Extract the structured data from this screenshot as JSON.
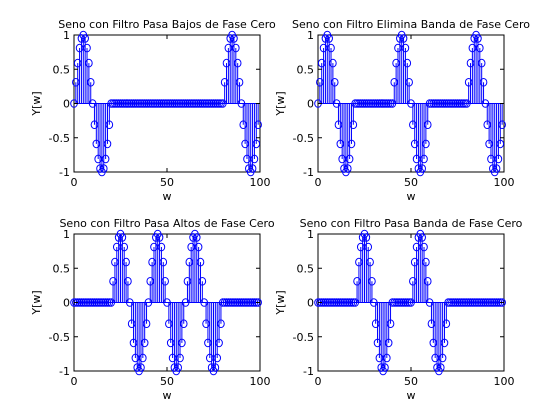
{
  "chart_data": [
    {
      "type": "stem",
      "title": "Seno con Filtro Pasa Bajos de Fase Cero",
      "xlabel": "w",
      "ylabel": "Y[w]",
      "xlim": [
        0,
        100
      ],
      "ylim": [
        -1,
        1
      ],
      "xticks": [
        0,
        50,
        100
      ],
      "yticks": [
        -1,
        -0.5,
        0,
        0.5,
        1
      ],
      "grid": false,
      "color": "#0000ff",
      "x": [
        0,
        1,
        2,
        3,
        4,
        5,
        6,
        7,
        8,
        9,
        10,
        11,
        12,
        13,
        14,
        15,
        16,
        17,
        18,
        19,
        20,
        21,
        22,
        23,
        24,
        25,
        26,
        27,
        28,
        29,
        30,
        31,
        32,
        33,
        34,
        35,
        36,
        37,
        38,
        39,
        40,
        41,
        42,
        43,
        44,
        45,
        46,
        47,
        48,
        49,
        50,
        51,
        52,
        53,
        54,
        55,
        56,
        57,
        58,
        59,
        60,
        61,
        62,
        63,
        64,
        65,
        66,
        67,
        68,
        69,
        70,
        71,
        72,
        73,
        74,
        75,
        76,
        77,
        78,
        79,
        80,
        81,
        82,
        83,
        84,
        85,
        86,
        87,
        88,
        89,
        90,
        91,
        92,
        93,
        94,
        95,
        96,
        97,
        98,
        99
      ],
      "y": [
        0,
        0.31,
        0.59,
        0.81,
        0.95,
        1,
        0.95,
        0.81,
        0.59,
        0.31,
        0,
        -0.31,
        -0.59,
        -0.81,
        -0.95,
        -1,
        -0.95,
        -0.81,
        -0.59,
        -0.31,
        0,
        0,
        0,
        0,
        0,
        0,
        0,
        0,
        0,
        0,
        0,
        0,
        0,
        0,
        0,
        0,
        0,
        0,
        0,
        0,
        0,
        0,
        0,
        0,
        0,
        0,
        0,
        0,
        0,
        0,
        0,
        0,
        0,
        0,
        0,
        0,
        0,
        0,
        0,
        0,
        0,
        0,
        0,
        0,
        0,
        0,
        0,
        0,
        0,
        0,
        0,
        0,
        0,
        0,
        0,
        0,
        0,
        0,
        0,
        0,
        0,
        0.31,
        0.59,
        0.81,
        0.95,
        1,
        0.95,
        0.81,
        0.59,
        0.31,
        0,
        -0.31,
        -0.59,
        -0.81,
        -0.95,
        -1,
        -0.95,
        -0.81,
        -0.59,
        -0.31
      ]
    },
    {
      "type": "stem",
      "title": "Seno con Filtro Elimina Banda de Fase Cero",
      "xlabel": "w",
      "ylabel": "Y[w]",
      "xlim": [
        0,
        100
      ],
      "ylim": [
        -1,
        1
      ],
      "xticks": [
        0,
        50,
        100
      ],
      "yticks": [
        -1,
        -0.5,
        0,
        0.5,
        1
      ],
      "grid": false,
      "color": "#0000ff",
      "x": [
        0,
        1,
        2,
        3,
        4,
        5,
        6,
        7,
        8,
        9,
        10,
        11,
        12,
        13,
        14,
        15,
        16,
        17,
        18,
        19,
        20,
        21,
        22,
        23,
        24,
        25,
        26,
        27,
        28,
        29,
        30,
        31,
        32,
        33,
        34,
        35,
        36,
        37,
        38,
        39,
        40,
        41,
        42,
        43,
        44,
        45,
        46,
        47,
        48,
        49,
        50,
        51,
        52,
        53,
        54,
        55,
        56,
        57,
        58,
        59,
        60,
        61,
        62,
        63,
        64,
        65,
        66,
        67,
        68,
        69,
        70,
        71,
        72,
        73,
        74,
        75,
        76,
        77,
        78,
        79,
        80,
        81,
        82,
        83,
        84,
        85,
        86,
        87,
        88,
        89,
        90,
        91,
        92,
        93,
        94,
        95,
        96,
        97,
        98,
        99
      ],
      "y": [
        0,
        0.31,
        0.59,
        0.81,
        0.95,
        1,
        0.95,
        0.81,
        0.59,
        0.31,
        0,
        -0.31,
        -0.59,
        -0.81,
        -0.95,
        -1,
        -0.95,
        -0.81,
        -0.59,
        -0.31,
        0,
        0,
        0,
        0,
        0,
        0,
        0,
        0,
        0,
        0,
        0,
        0,
        0,
        0,
        0,
        0,
        0,
        0,
        0,
        0,
        0,
        0.31,
        0.59,
        0.81,
        0.95,
        1,
        0.95,
        0.81,
        0.59,
        0.31,
        0,
        -0.31,
        -0.59,
        -0.81,
        -0.95,
        -1,
        -0.95,
        -0.81,
        -0.59,
        -0.31,
        0,
        0,
        0,
        0,
        0,
        0,
        0,
        0,
        0,
        0,
        0,
        0,
        0,
        0,
        0,
        0,
        0,
        0,
        0,
        0,
        0,
        0.31,
        0.59,
        0.81,
        0.95,
        1,
        0.95,
        0.81,
        0.59,
        0.31,
        0,
        -0.31,
        -0.59,
        -0.81,
        -0.95,
        -1,
        -0.95,
        -0.81,
        -0.59,
        -0.31
      ]
    },
    {
      "type": "stem",
      "title": "Seno con Filtro Pasa Altos de Fase Cero",
      "xlabel": "w",
      "ylabel": "Y[w]",
      "xlim": [
        0,
        100
      ],
      "ylim": [
        -1,
        1
      ],
      "xticks": [
        0,
        50,
        100
      ],
      "yticks": [
        -1,
        -0.5,
        0,
        0.5,
        1
      ],
      "grid": false,
      "color": "#0000ff",
      "x": [
        0,
        1,
        2,
        3,
        4,
        5,
        6,
        7,
        8,
        9,
        10,
        11,
        12,
        13,
        14,
        15,
        16,
        17,
        18,
        19,
        20,
        21,
        22,
        23,
        24,
        25,
        26,
        27,
        28,
        29,
        30,
        31,
        32,
        33,
        34,
        35,
        36,
        37,
        38,
        39,
        40,
        41,
        42,
        43,
        44,
        45,
        46,
        47,
        48,
        49,
        50,
        51,
        52,
        53,
        54,
        55,
        56,
        57,
        58,
        59,
        60,
        61,
        62,
        63,
        64,
        65,
        66,
        67,
        68,
        69,
        70,
        71,
        72,
        73,
        74,
        75,
        76,
        77,
        78,
        79,
        80,
        81,
        82,
        83,
        84,
        85,
        86,
        87,
        88,
        89,
        90,
        91,
        92,
        93,
        94,
        95,
        96,
        97,
        98,
        99
      ],
      "y": [
        0,
        0,
        0,
        0,
        0,
        0,
        0,
        0,
        0,
        0,
        0,
        0,
        0,
        0,
        0,
        0,
        0,
        0,
        0,
        0,
        0,
        0.31,
        0.59,
        0.81,
        0.95,
        1,
        0.95,
        0.81,
        0.59,
        0.31,
        0,
        -0.31,
        -0.59,
        -0.81,
        -0.95,
        -1,
        -0.95,
        -0.81,
        -0.59,
        -0.31,
        0,
        0.31,
        0.59,
        0.81,
        0.95,
        1,
        0.95,
        0.81,
        0.59,
        0.31,
        0,
        -0.31,
        -0.59,
        -0.81,
        -0.95,
        -1,
        -0.95,
        -0.81,
        -0.59,
        -0.31,
        0,
        0.31,
        0.59,
        0.81,
        0.95,
        1,
        0.95,
        0.81,
        0.59,
        0.31,
        0,
        -0.31,
        -0.59,
        -0.81,
        -0.95,
        -1,
        -0.95,
        -0.81,
        -0.59,
        -0.31,
        0,
        0,
        0,
        0,
        0,
        0,
        0,
        0,
        0,
        0,
        0,
        0,
        0,
        0,
        0,
        0,
        0,
        0,
        0,
        0
      ]
    },
    {
      "type": "stem",
      "title": "Seno con Filtro Pasa Banda de Fase Cero",
      "xlabel": "w",
      "ylabel": "Y[w]",
      "xlim": [
        0,
        100
      ],
      "ylim": [
        -1,
        1
      ],
      "xticks": [
        0,
        50,
        100
      ],
      "yticks": [
        -1,
        -0.5,
        0,
        0.5,
        1
      ],
      "grid": false,
      "color": "#0000ff",
      "x": [
        0,
        1,
        2,
        3,
        4,
        5,
        6,
        7,
        8,
        9,
        10,
        11,
        12,
        13,
        14,
        15,
        16,
        17,
        18,
        19,
        20,
        21,
        22,
        23,
        24,
        25,
        26,
        27,
        28,
        29,
        30,
        31,
        32,
        33,
        34,
        35,
        36,
        37,
        38,
        39,
        40,
        41,
        42,
        43,
        44,
        45,
        46,
        47,
        48,
        49,
        50,
        51,
        52,
        53,
        54,
        55,
        56,
        57,
        58,
        59,
        60,
        61,
        62,
        63,
        64,
        65,
        66,
        67,
        68,
        69,
        70,
        71,
        72,
        73,
        74,
        75,
        76,
        77,
        78,
        79,
        80,
        81,
        82,
        83,
        84,
        85,
        86,
        87,
        88,
        89,
        90,
        91,
        92,
        93,
        94,
        95,
        96,
        97,
        98,
        99
      ],
      "y": [
        0,
        0,
        0,
        0,
        0,
        0,
        0,
        0,
        0,
        0,
        0,
        0,
        0,
        0,
        0,
        0,
        0,
        0,
        0,
        0,
        0,
        0.31,
        0.59,
        0.81,
        0.95,
        1,
        0.95,
        0.81,
        0.59,
        0.31,
        0,
        -0.31,
        -0.59,
        -0.81,
        -0.95,
        -1,
        -0.95,
        -0.81,
        -0.59,
        -0.31,
        0,
        0,
        0,
        0,
        0,
        0,
        0,
        0,
        0,
        0,
        0,
        0.31,
        0.59,
        0.81,
        0.95,
        1,
        0.95,
        0.81,
        0.59,
        0.31,
        0,
        -0.31,
        -0.59,
        -0.81,
        -0.95,
        -1,
        -0.95,
        -0.81,
        -0.59,
        -0.31,
        0,
        0,
        0,
        0,
        0,
        0,
        0,
        0,
        0,
        0,
        0,
        0,
        0,
        0,
        0,
        0,
        0,
        0,
        0,
        0,
        0,
        0,
        0,
        0,
        0,
        0,
        0,
        0,
        0,
        0
      ]
    }
  ]
}
